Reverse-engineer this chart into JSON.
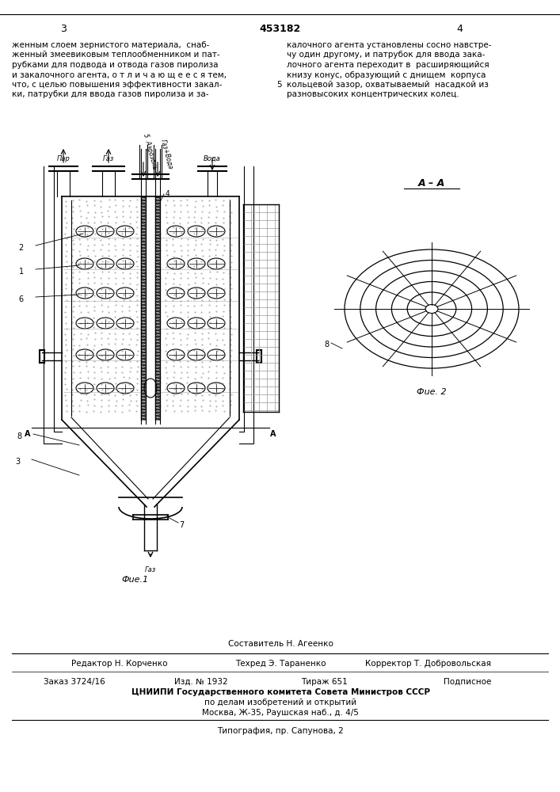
{
  "page_number_left": "3",
  "page_number_right": "4",
  "patent_number": "453182",
  "text_left_lines": [
    "женным слоем зернистого материала,  снаб-",
    "женный змеевиковым теплообменником и пат-",
    "рубками для подвода и отвода газов пиролиза",
    "и закалочного агента, о т л и ч а ю щ е е с я тем,",
    "что, с целью повышения эффективности закал-",
    "ки, патрубки для ввода газов пиролиза и за-"
  ],
  "text_right_lines": [
    "калочного агента установлены сосно навстре-",
    "чу один другому, и патрубок для ввода зака-",
    "лочного агента переходит в  расширяющийся",
    "книзу конус, образующий с днищем  корпуса",
    "кольцевой зазор, охватываемый  насадкой из",
    "разновысоких концентрических колец."
  ],
  "line5_number": "5",
  "fig1_label": "Фue.1",
  "fig2_label": "Фue. 2",
  "fig2_title": "A – A",
  "fig2_number": "8",
  "editor_label": "Редактор",
  "editor_name": "Н. Корченко",
  "tech_label": "Техред",
  "tech_name": "Э. Тараненко",
  "corrector_label": "Корректор",
  "corrector_name": "Т. Добровольская",
  "compiler_label": "Составитель",
  "compiler_name": "Н. Агеенко",
  "order_text": "Заказ 3724/16",
  "edition_text": "Изд. № 1932",
  "circulation_text": "Тираж 651",
  "subscription_text": "Подписное",
  "cnipi_text": "ЦНИИПИ Государственного комитета Совета Министров СССР",
  "address1_text": "по делам изобретений и открытий",
  "address2_text": "Москва, Ж-35, Раушская наб., д. 4/5",
  "typography_text": "Типография, пр. Сапунова, 2",
  "bg_color": "#ffffff",
  "text_color": "#000000"
}
